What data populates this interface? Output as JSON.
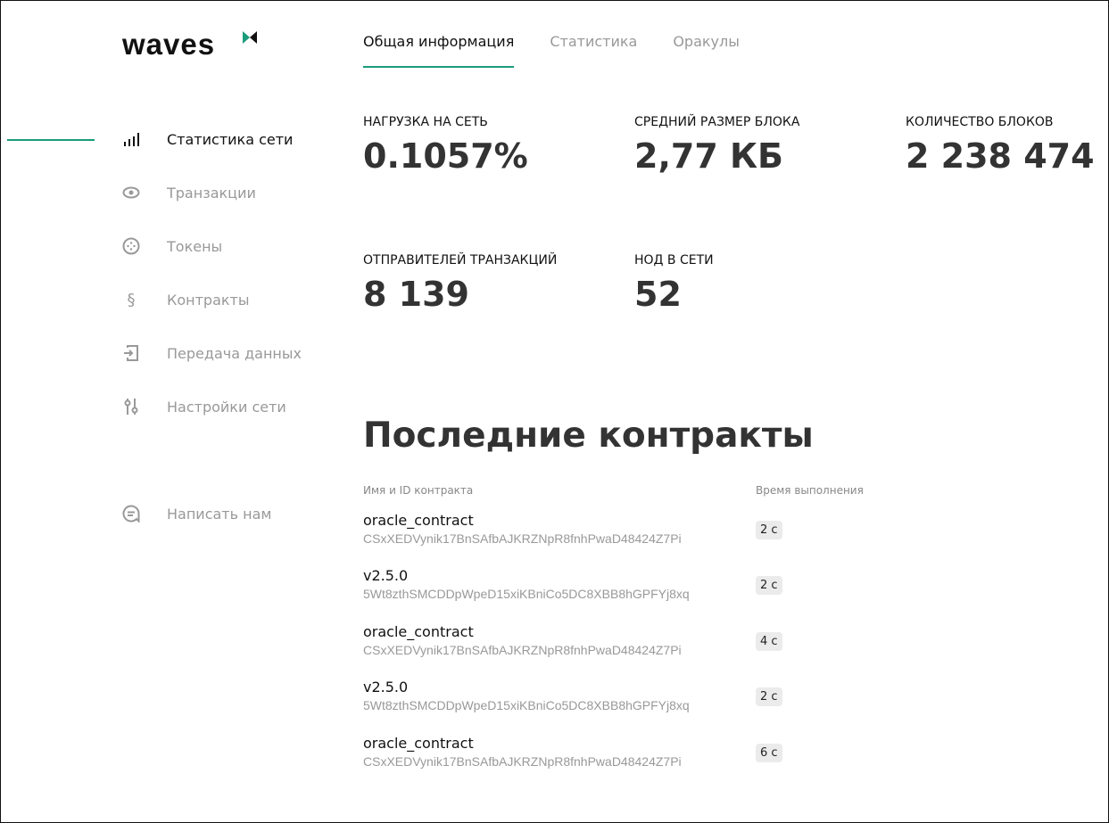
{
  "logo": "waves",
  "colors": {
    "accent": "#1a9c7b"
  },
  "tabs": [
    {
      "label": "Общая информация",
      "active": true
    },
    {
      "label": "Статистика"
    },
    {
      "label": "Оракулы"
    }
  ],
  "sidebar": {
    "items": [
      {
        "label": "Статистика сети",
        "icon": "bar-chart-icon",
        "active": true
      },
      {
        "label": "Транзакции",
        "icon": "eye-icon"
      },
      {
        "label": "Токены",
        "icon": "token-icon"
      },
      {
        "label": "Контракты",
        "icon": "section-icon"
      },
      {
        "label": "Передача данных",
        "icon": "data-transfer-icon"
      },
      {
        "label": "Настройки сети",
        "icon": "sliders-icon"
      }
    ],
    "contact": {
      "label": "Написать нам",
      "icon": "chat-icon"
    }
  },
  "stats": [
    {
      "title": "НАГРУЗКА НА СЕТЬ",
      "value": "0.1057%"
    },
    {
      "title": "СРЕДНИЙ РАЗМЕР БЛОКА",
      "value": "2,77 КБ"
    },
    {
      "title": "КОЛИЧЕСТВО БЛОКОВ",
      "value": "2 238 474"
    },
    {
      "title": "ОТПРАВИТЕЛЕЙ ТРАНЗАКЦИЙ",
      "value": "8 139"
    },
    {
      "title": "НОД В СЕТИ",
      "value": "52"
    }
  ],
  "contracts": {
    "title": "Последние контракты",
    "col_name": "Имя и ID контракта",
    "col_time": "Время выполнения",
    "rows": [
      {
        "name": "oracle_contract",
        "id": "CSxXEDVynik17BnSAfbAJKRZNpR8fnhPwaD48424Z7Pi",
        "time": "2 с"
      },
      {
        "name": "v2.5.0",
        "id": "5Wt8zthSMCDDpWpeD15xiKBniCo5DC8XBB8hGPFYj8xq",
        "time": "2 с"
      },
      {
        "name": "oracle_contract",
        "id": "CSxXEDVynik17BnSAfbAJKRZNpR8fnhPwaD48424Z7Pi",
        "time": "4 с"
      },
      {
        "name": "v2.5.0",
        "id": "5Wt8zthSMCDDpWpeD15xiKBniCo5DC8XBB8hGPFYj8xq",
        "time": "2 с"
      },
      {
        "name": "oracle_contract",
        "id": "CSxXEDVynik17BnSAfbAJKRZNpR8fnhPwaD48424Z7Pi",
        "time": "6 с"
      }
    ]
  }
}
